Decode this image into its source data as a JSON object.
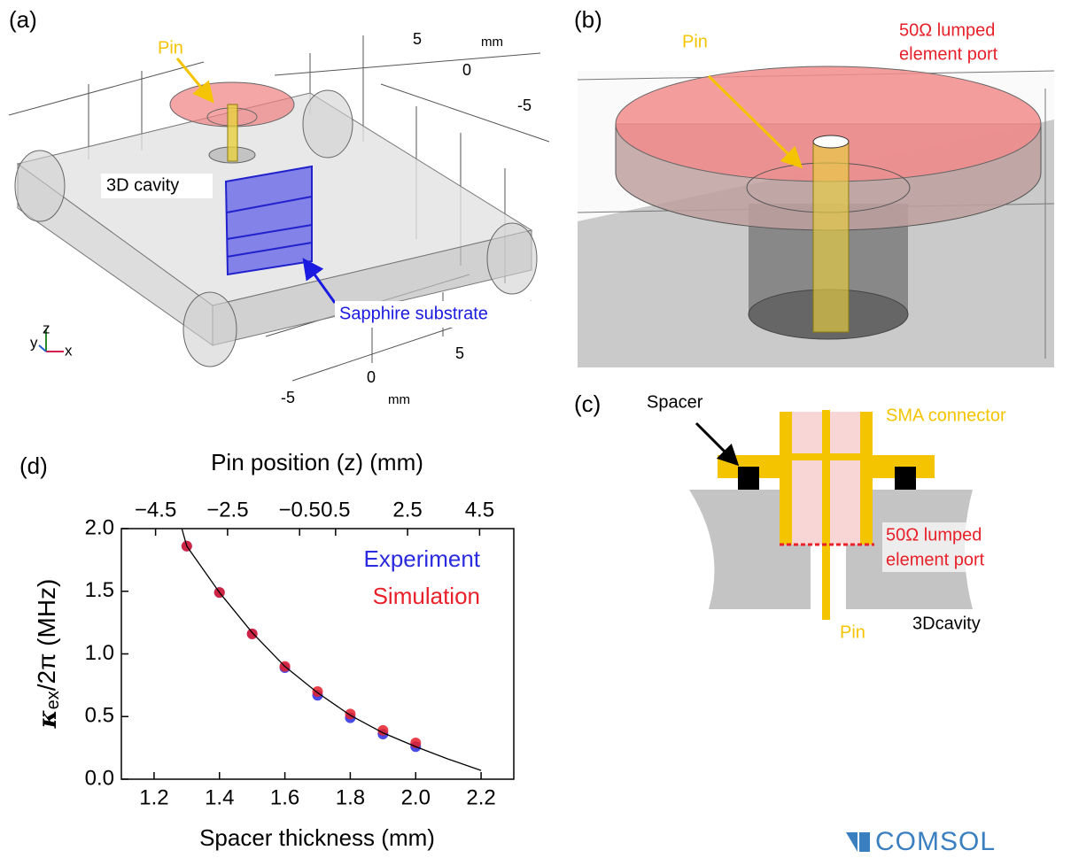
{
  "panel_a": {
    "label": "(a)",
    "pin": "Pin",
    "cavity": "3D cavity",
    "substrate": "Sapphire substrate",
    "axis_labels": [
      "5",
      "mm",
      "0",
      "-5",
      "5",
      "0",
      "-5",
      "mm"
    ],
    "triad": [
      "y",
      "z",
      "x"
    ]
  },
  "panel_b": {
    "label": "(b)",
    "pin": "Pin",
    "port": [
      "50Ω lumped",
      "element port"
    ]
  },
  "panel_c": {
    "label": "(c)",
    "spacer": "Spacer",
    "connector": "SMA connector",
    "port": [
      "50Ω lumped",
      "element port"
    ],
    "pin": "Pin",
    "cavity": "3Dcavity"
  },
  "logo": "COMSOL",
  "chart_data": {
    "type": "scatter",
    "label": "(d)",
    "x_label": "Spacer thickness (mm)",
    "x2_label": "Pin position (z) (mm)",
    "y_label": {
      "symbol": "κ",
      "subscript": "ex",
      "rest": "/2π (MHz)"
    },
    "xlim": [
      1.1,
      2.3
    ],
    "xticks": [
      1.2,
      1.4,
      1.6,
      1.8,
      {
        "value": 2,
        "label": "2.0"
      },
      2.2
    ],
    "x2lim": [
      -5.45,
      5.45
    ],
    "x2ticks": [
      {
        "value": -4.5,
        "label": "−4.5"
      },
      {
        "value": -2.5,
        "label": "−2.5"
      },
      {
        "value": -0.5,
        "label": "−0.5"
      },
      0.5,
      2.5,
      4.5
    ],
    "ylim": [
      0,
      2
    ],
    "yticks": [
      {
        "value": 0,
        "label": "0.0"
      },
      0.5,
      {
        "value": 1,
        "label": "1.0"
      },
      1.5,
      {
        "value": 2,
        "label": "2.0"
      }
    ],
    "x": [
      1.3,
      1.4,
      1.5,
      1.6,
      1.7,
      1.8,
      1.9,
      2.0
    ],
    "series": [
      {
        "name": "Experiment",
        "color": "#2a2ae0",
        "values": [
          1.86,
          1.49,
          1.16,
          0.89,
          0.67,
          0.49,
          0.36,
          0.26
        ]
      },
      {
        "name": "Simulation",
        "color": "#e8202a",
        "values": [
          1.86,
          1.49,
          1.16,
          0.9,
          0.7,
          0.52,
          0.39,
          0.29
        ]
      }
    ],
    "fit": {
      "color": "#000000",
      "x": [
        1.285,
        1.3,
        1.4,
        1.5,
        1.6,
        1.7,
        1.8,
        1.9,
        2.0,
        2.1,
        2.2
      ],
      "values": [
        2.0,
        1.86,
        1.49,
        1.17,
        0.9,
        0.69,
        0.51,
        0.37,
        0.26,
        0.16,
        0.07
      ]
    }
  }
}
